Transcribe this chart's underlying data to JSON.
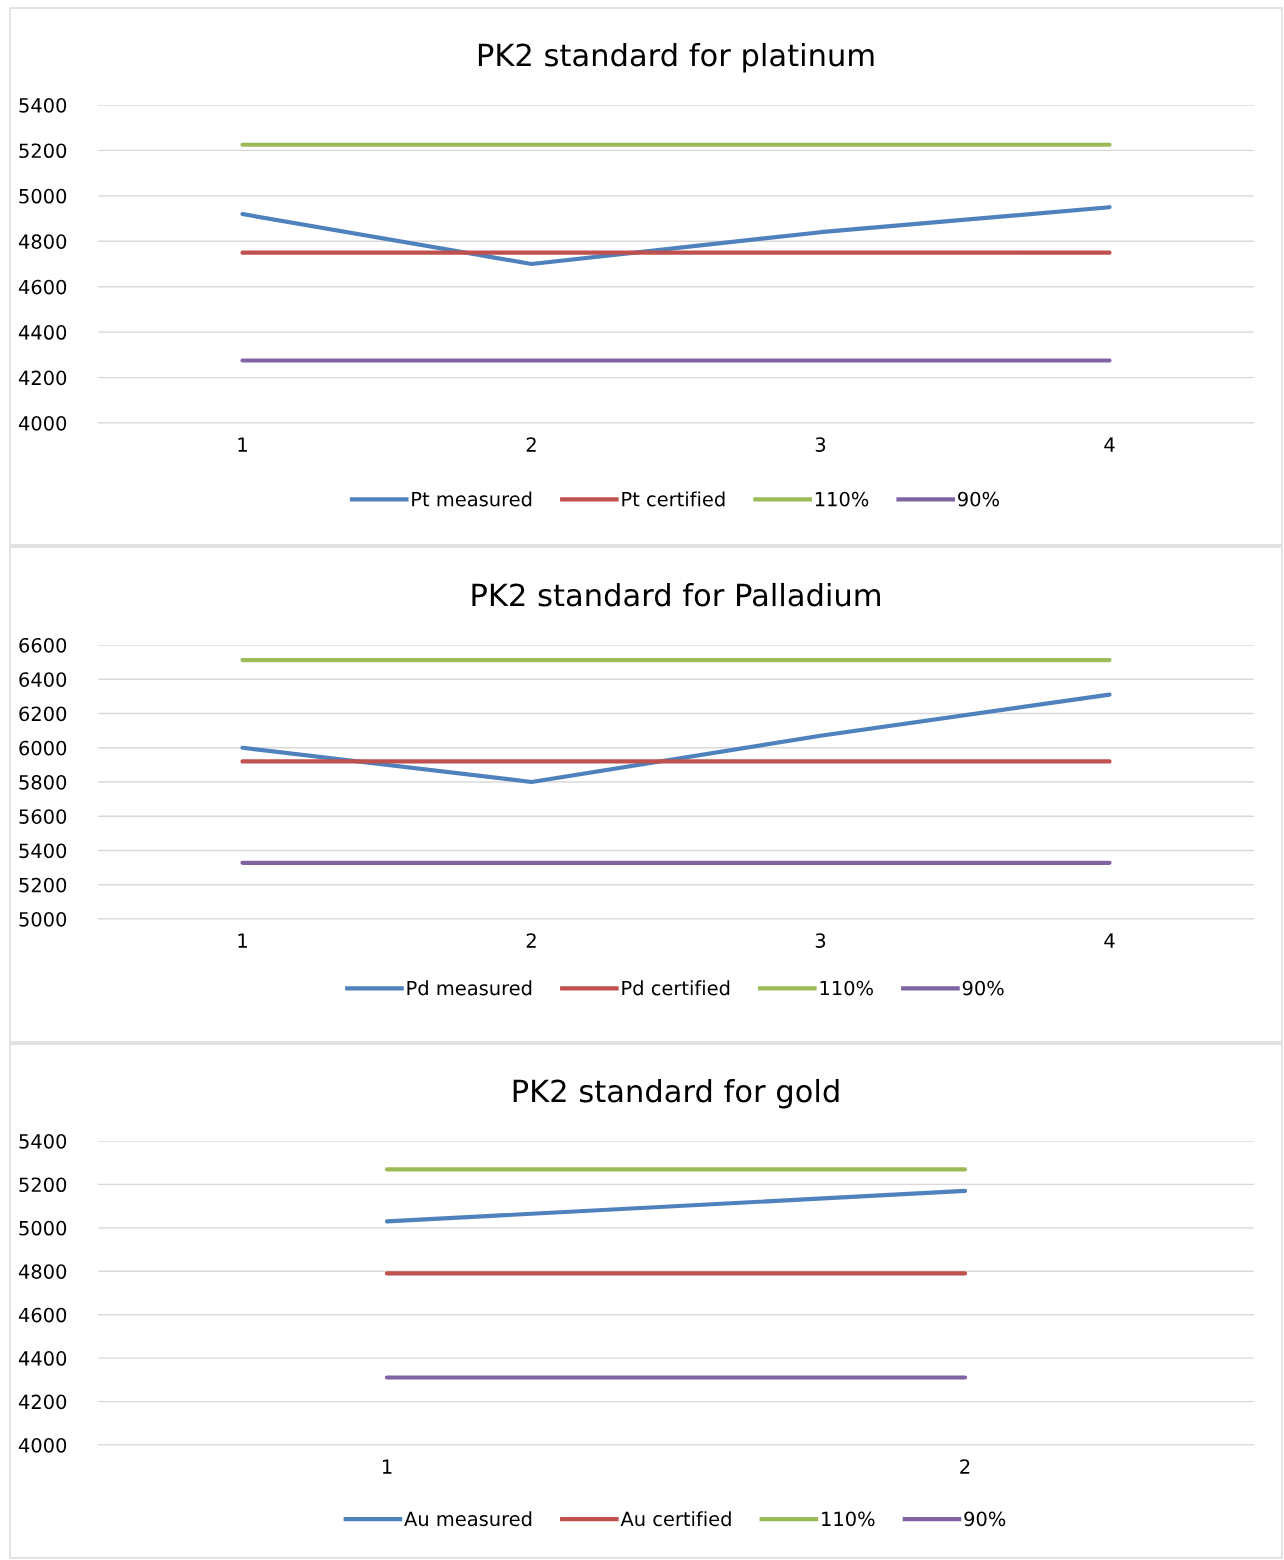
{
  "chart_data": [
    {
      "type": "line",
      "title": "PK2 standard for platinum",
      "categories": [
        "1",
        "2",
        "3",
        "4"
      ],
      "ylim": [
        4000,
        5400
      ],
      "yticks": [
        4000,
        4200,
        4400,
        4600,
        4800,
        5000,
        5200,
        5400
      ],
      "grid": "y",
      "legend": "bottom",
      "series": [
        {
          "name": "Pt measured",
          "color": "#4f81bd",
          "values": [
            4920,
            4700,
            4840,
            4950
          ]
        },
        {
          "name": "Pt certified",
          "color": "#c0504d",
          "values": [
            4750,
            4750,
            4750,
            4750
          ]
        },
        {
          "name": "110%",
          "color": "#9bbb59",
          "values": [
            5225,
            5225,
            5225,
            5225
          ]
        },
        {
          "name": "90%",
          "color": "#8064a2",
          "values": [
            4275,
            4275,
            4275,
            4275
          ]
        }
      ]
    },
    {
      "type": "line",
      "title": "PK2 standard for Palladium",
      "categories": [
        "1",
        "2",
        "3",
        "4"
      ],
      "ylim": [
        5000,
        6600
      ],
      "yticks": [
        5000,
        5200,
        5400,
        5600,
        5800,
        6000,
        6200,
        6400,
        6600
      ],
      "grid": "y",
      "legend": "bottom",
      "series": [
        {
          "name": "Pd measured",
          "color": "#4f81bd",
          "values": [
            6000,
            5800,
            6070,
            6310
          ]
        },
        {
          "name": "Pd certified",
          "color": "#c0504d",
          "values": [
            5920,
            5920,
            5920,
            5920
          ]
        },
        {
          "name": "110%",
          "color": "#9bbb59",
          "values": [
            6512,
            6512,
            6512,
            6512
          ]
        },
        {
          "name": "90%",
          "color": "#8064a2",
          "values": [
            5328,
            5328,
            5328,
            5328
          ]
        }
      ]
    },
    {
      "type": "line",
      "title": "PK2 standard for gold",
      "categories": [
        "1",
        "2"
      ],
      "ylim": [
        4000,
        5400
      ],
      "yticks": [
        4000,
        4200,
        4400,
        4600,
        4800,
        5000,
        5200,
        5400
      ],
      "grid": "y",
      "legend": "bottom",
      "series": [
        {
          "name": "Au measured",
          "color": "#4f81bd",
          "values": [
            5030,
            5170
          ]
        },
        {
          "name": "Au certified",
          "color": "#c0504d",
          "values": [
            4790,
            4790
          ]
        },
        {
          "name": "110%",
          "color": "#9bbb59",
          "values": [
            5269,
            5269
          ]
        },
        {
          "name": "90%",
          "color": "#8064a2",
          "values": [
            4311,
            4311
          ]
        }
      ]
    }
  ]
}
